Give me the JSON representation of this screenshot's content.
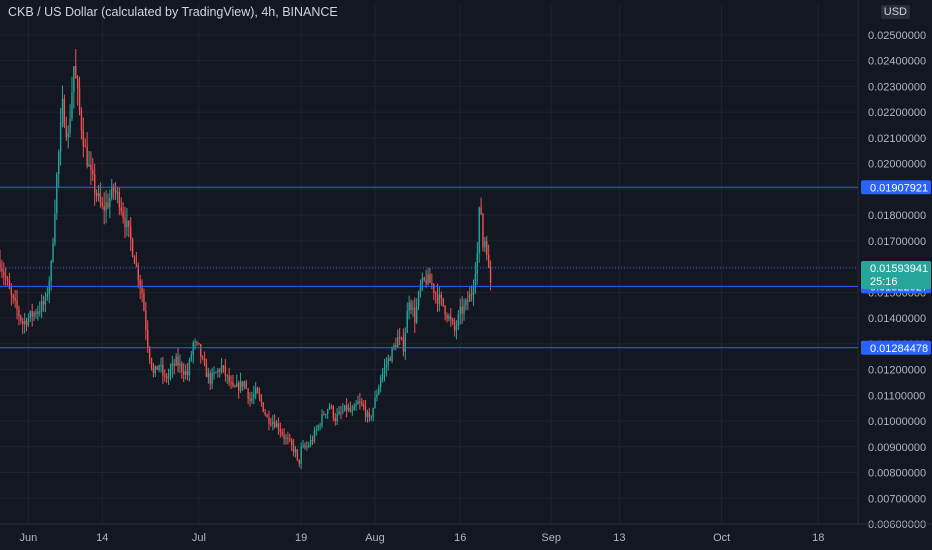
{
  "chart_data": {
    "type": "candlestick",
    "title": "CKB / US Dollar (calculated by TradingView), 4h, BINANCE",
    "currency": "USD",
    "y_ticks": [
      "0.02500000",
      "0.02400000",
      "0.02300000",
      "0.02200000",
      "0.02100000",
      "0.02000000",
      "0.01900000",
      "0.01800000",
      "0.01700000",
      "0.01600000",
      "0.01500000",
      "0.01400000",
      "0.01300000",
      "0.01200000",
      "0.01100000",
      "0.01000000",
      "0.00900000",
      "0.00800000",
      "0.00700000",
      "0.00600000"
    ],
    "ylim": [
      0.006,
      0.0262
    ],
    "x_ticks": [
      {
        "label": "Jun",
        "day": 1
      },
      {
        "label": "14",
        "day": 14
      },
      {
        "label": "Jul",
        "day": 31
      },
      {
        "label": "19",
        "day": 49
      },
      {
        "label": "Aug",
        "day": 62
      },
      {
        "label": "16",
        "day": 77
      },
      {
        "label": "Sep",
        "day": 93
      },
      {
        "label": "13",
        "day": 105
      },
      {
        "label": "Oct",
        "day": 123
      },
      {
        "label": "18",
        "day": 140
      }
    ],
    "xlim": [
      -4,
      147
    ],
    "price_path": [
      [
        -4,
        0.0162
      ],
      [
        -2,
        0.0148
      ],
      [
        0,
        0.0138
      ],
      [
        2,
        0.0142
      ],
      [
        4,
        0.0146
      ],
      [
        5,
        0.016
      ],
      [
        6,
        0.0195
      ],
      [
        7,
        0.0222
      ],
      [
        8,
        0.021
      ],
      [
        9,
        0.0238
      ],
      [
        10,
        0.022
      ],
      [
        11,
        0.0205
      ],
      [
        12,
        0.0195
      ],
      [
        13,
        0.0188
      ],
      [
        14,
        0.0182
      ],
      [
        15,
        0.0185
      ],
      [
        16,
        0.019
      ],
      [
        17,
        0.0186
      ],
      [
        18,
        0.0178
      ],
      [
        19,
        0.017
      ],
      [
        20,
        0.016
      ],
      [
        21,
        0.015
      ],
      [
        22,
        0.013
      ],
      [
        23,
        0.0118
      ],
      [
        24,
        0.0122
      ],
      [
        25,
        0.0116
      ],
      [
        27,
        0.0123
      ],
      [
        29,
        0.0118
      ],
      [
        30,
        0.013
      ],
      [
        31,
        0.0128
      ],
      [
        32,
        0.012
      ],
      [
        33,
        0.0116
      ],
      [
        35,
        0.0121
      ],
      [
        37,
        0.0112
      ],
      [
        39,
        0.0115
      ],
      [
        40,
        0.0108
      ],
      [
        41,
        0.0111
      ],
      [
        42,
        0.0107
      ],
      [
        43,
        0.0101
      ],
      [
        44,
        0.01
      ],
      [
        45,
        0.0098
      ],
      [
        46,
        0.0094
      ],
      [
        47,
        0.0091
      ],
      [
        48,
        0.0088
      ],
      [
        48.5,
        0.0082
      ],
      [
        49,
        0.0089
      ],
      [
        50,
        0.009
      ],
      [
        51,
        0.0093
      ],
      [
        52,
        0.0098
      ],
      [
        53,
        0.0103
      ],
      [
        54,
        0.0106
      ],
      [
        55,
        0.0101
      ],
      [
        57,
        0.0105
      ],
      [
        58,
        0.0103
      ],
      [
        59,
        0.0107
      ],
      [
        60,
        0.0105
      ],
      [
        61,
        0.01
      ],
      [
        62,
        0.0108
      ],
      [
        63,
        0.0117
      ],
      [
        64,
        0.0122
      ],
      [
        65,
        0.0127
      ],
      [
        66,
        0.0132
      ],
      [
        67,
        0.0129
      ],
      [
        68,
        0.0148
      ],
      [
        69,
        0.014
      ],
      [
        70,
        0.0152
      ],
      [
        71,
        0.0155
      ],
      [
        72,
        0.0153
      ],
      [
        73,
        0.0148
      ],
      [
        74,
        0.0145
      ],
      [
        75,
        0.014
      ],
      [
        76,
        0.0135
      ],
      [
        77,
        0.0142
      ],
      [
        78,
        0.0145
      ],
      [
        79,
        0.015
      ],
      [
        80,
        0.0165
      ],
      [
        80.5,
        0.0188
      ],
      [
        81,
        0.0168
      ],
      [
        81.5,
        0.0172
      ],
      [
        82,
        0.0158
      ],
      [
        82.5,
        0.0152
      ]
    ],
    "candle_samples_per_day": 3,
    "levels": [
      {
        "price": 0.01907921,
        "label": "0.01907921",
        "style": "solid"
      },
      {
        "price": 0.01594576,
        "label": "0.01594576",
        "style": "dotted"
      },
      {
        "price": 0.01522927,
        "label": "0.01522927",
        "style": "solid"
      },
      {
        "price": 0.01284478,
        "label": "0.01284478",
        "style": "solid"
      }
    ],
    "last_price": {
      "price": 0.01593941,
      "label": "0.01593941",
      "countdown": "25:16"
    },
    "colors": {
      "background": "#131722",
      "up": "#26a69a",
      "down": "#ef5350",
      "level_line": "#2962ff",
      "level_label_bg": "#2962ff",
      "last_price_bg": "#26a69a",
      "axis_text": "#b2b5be",
      "grid": "#1f2330"
    }
  }
}
